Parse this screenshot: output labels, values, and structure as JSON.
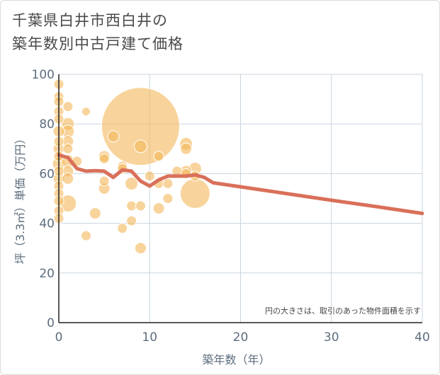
{
  "chart_data": {
    "type": "scatter",
    "title_lines": [
      "千葉県白井市西白井の",
      "築年数別中古戸建て価格"
    ],
    "xlabel": "築年数（年）",
    "ylabel": "坪（3.3㎡）単価（万円）",
    "xlim": [
      0,
      40
    ],
    "ylim": [
      0,
      100
    ],
    "xticks": [
      0,
      10,
      20,
      30,
      40
    ],
    "yticks": [
      0,
      20,
      40,
      60,
      80,
      100
    ],
    "note": "円の大きさは、取引のあった物件面積を示す",
    "colors": {
      "bubble": "#f3b85a",
      "line": "#d9705a",
      "grid": "#c9d6df"
    },
    "bubbles": [
      {
        "x": 0,
        "y": 96,
        "s": 7
      },
      {
        "x": 0,
        "y": 91,
        "s": 7
      },
      {
        "x": 0,
        "y": 89,
        "s": 7
      },
      {
        "x": 0,
        "y": 85,
        "s": 7
      },
      {
        "x": 0,
        "y": 82,
        "s": 7
      },
      {
        "x": 0,
        "y": 77,
        "s": 8
      },
      {
        "x": 0,
        "y": 73,
        "s": 7
      },
      {
        "x": 0,
        "y": 70,
        "s": 8
      },
      {
        "x": 0,
        "y": 67,
        "s": 7
      },
      {
        "x": 0,
        "y": 64,
        "s": 9
      },
      {
        "x": 0,
        "y": 61,
        "s": 7
      },
      {
        "x": 0,
        "y": 58,
        "s": 8
      },
      {
        "x": 0,
        "y": 55,
        "s": 7
      },
      {
        "x": 0,
        "y": 52,
        "s": 7
      },
      {
        "x": 0,
        "y": 49,
        "s": 7
      },
      {
        "x": 0,
        "y": 45,
        "s": 7
      },
      {
        "x": 0,
        "y": 42,
        "s": 7
      },
      {
        "x": 1,
        "y": 87,
        "s": 7
      },
      {
        "x": 1,
        "y": 80,
        "s": 9
      },
      {
        "x": 1,
        "y": 77,
        "s": 9
      },
      {
        "x": 1,
        "y": 73,
        "s": 8
      },
      {
        "x": 1,
        "y": 70,
        "s": 7
      },
      {
        "x": 1,
        "y": 65,
        "s": 9
      },
      {
        "x": 1,
        "y": 61,
        "s": 8
      },
      {
        "x": 1,
        "y": 58,
        "s": 8
      },
      {
        "x": 1,
        "y": 48,
        "s": 12
      },
      {
        "x": 2,
        "y": 65,
        "s": 7
      },
      {
        "x": 3,
        "y": 85,
        "s": 6
      },
      {
        "x": 3,
        "y": 35,
        "s": 7
      },
      {
        "x": 4,
        "y": 44,
        "s": 8
      },
      {
        "x": 5,
        "y": 67,
        "s": 8
      },
      {
        "x": 5,
        "y": 66,
        "s": 7
      },
      {
        "x": 5,
        "y": 57,
        "s": 7
      },
      {
        "x": 5,
        "y": 54,
        "s": 8
      },
      {
        "x": 6,
        "y": 75,
        "s": 8
      },
      {
        "x": 7,
        "y": 63,
        "s": 7
      },
      {
        "x": 7,
        "y": 62,
        "s": 7
      },
      {
        "x": 7,
        "y": 38,
        "s": 7
      },
      {
        "x": 8,
        "y": 56,
        "s": 9
      },
      {
        "x": 8,
        "y": 47,
        "s": 7
      },
      {
        "x": 8,
        "y": 41,
        "s": 7
      },
      {
        "x": 9,
        "y": 79,
        "s": 55
      },
      {
        "x": 9,
        "y": 71,
        "s": 9
      },
      {
        "x": 9,
        "y": 47,
        "s": 7
      },
      {
        "x": 9,
        "y": 30,
        "s": 8
      },
      {
        "x": 10,
        "y": 59,
        "s": 7
      },
      {
        "x": 11,
        "y": 67,
        "s": 7
      },
      {
        "x": 11,
        "y": 56,
        "s": 7
      },
      {
        "x": 11,
        "y": 46,
        "s": 8
      },
      {
        "x": 12,
        "y": 56,
        "s": 7
      },
      {
        "x": 12,
        "y": 50,
        "s": 7
      },
      {
        "x": 13,
        "y": 61,
        "s": 7
      },
      {
        "x": 14,
        "y": 72,
        "s": 9
      },
      {
        "x": 14,
        "y": 70,
        "s": 8
      },
      {
        "x": 14,
        "y": 61,
        "s": 8
      },
      {
        "x": 14,
        "y": 60,
        "s": 7
      },
      {
        "x": 15,
        "y": 62,
        "s": 9
      },
      {
        "x": 15,
        "y": 59,
        "s": 7
      },
      {
        "x": 15,
        "y": 52,
        "s": 21
      }
    ],
    "trend": {
      "x": [
        0,
        1,
        2,
        3,
        4,
        5,
        6,
        7,
        8,
        9,
        10,
        11,
        12,
        13,
        14,
        15,
        16,
        17,
        20,
        25,
        30,
        35,
        40
      ],
      "y": [
        67.5,
        66.5,
        62,
        61,
        61.2,
        61,
        58.5,
        61.5,
        61,
        57,
        55,
        57.5,
        59,
        59,
        59,
        59.5,
        58.5,
        56.3,
        54.7,
        52,
        49.3,
        46.7,
        44
      ]
    }
  }
}
